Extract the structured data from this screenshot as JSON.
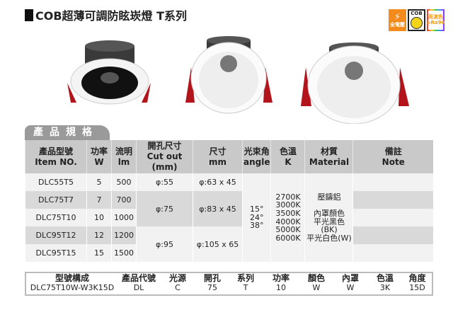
{
  "title": "COB超薄可調防眩崁燈 T系列",
  "badges": [
    {
      "icon": "lightning-icon",
      "text": "全電壓",
      "color": "#f28a1c"
    },
    {
      "icon": "cob-chip-icon",
      "text": "COB",
      "color": "#f3d419"
    },
    {
      "icon": "rainbow-icon",
      "text": "高演色",
      "sub": "≥Ra90"
    }
  ],
  "spec_tab": "產品規格",
  "headers": [
    [
      "產品型號",
      "Item NO."
    ],
    [
      "功率",
      "W"
    ],
    [
      "流明",
      "lm"
    ],
    [
      "開孔尺寸",
      "Cut out (mm)"
    ],
    [
      "尺寸",
      "mm"
    ],
    [
      "光束角",
      "angle"
    ],
    [
      "色溫",
      "K"
    ],
    [
      "材質",
      "Material"
    ],
    [
      "備註",
      "Note"
    ]
  ],
  "rows": [
    {
      "item": "DLC55T5",
      "w": "5",
      "lm": "500"
    },
    {
      "item": "DLC75T7",
      "w": "7",
      "lm": "700"
    },
    {
      "item": "DLC75T10",
      "w": "10",
      "lm": "1000"
    },
    {
      "item": "DLC95T12",
      "w": "12",
      "lm": "1200"
    },
    {
      "item": "DLC95T15",
      "w": "15",
      "lm": "1500"
    }
  ],
  "cutouts": [
    "φ:55",
    "φ:75",
    "φ:95"
  ],
  "sizes": [
    "φ:63 x 45",
    "φ:83 x 45",
    "φ:105 x 65"
  ],
  "angles": [
    "15°",
    "24°",
    "38°"
  ],
  "temps": [
    "2700K",
    "3000K",
    "3500K",
    "4000K",
    "5000K",
    "6000K"
  ],
  "material": {
    "main": "壓鑄鋁",
    "lines": [
      "內罩顏色",
      "平光黑色(BK)",
      "平光白色(W)"
    ]
  },
  "model": {
    "headers": [
      "型號構成",
      "產品代號",
      "光源",
      "開孔",
      "系列",
      "功率",
      "顏色",
      "內罩",
      "色溫",
      "角度"
    ],
    "values": [
      "DLC75T10W-W3K15D",
      "DL",
      "C",
      "75",
      "T",
      "10",
      "W",
      "W",
      "3K",
      "15D"
    ]
  }
}
